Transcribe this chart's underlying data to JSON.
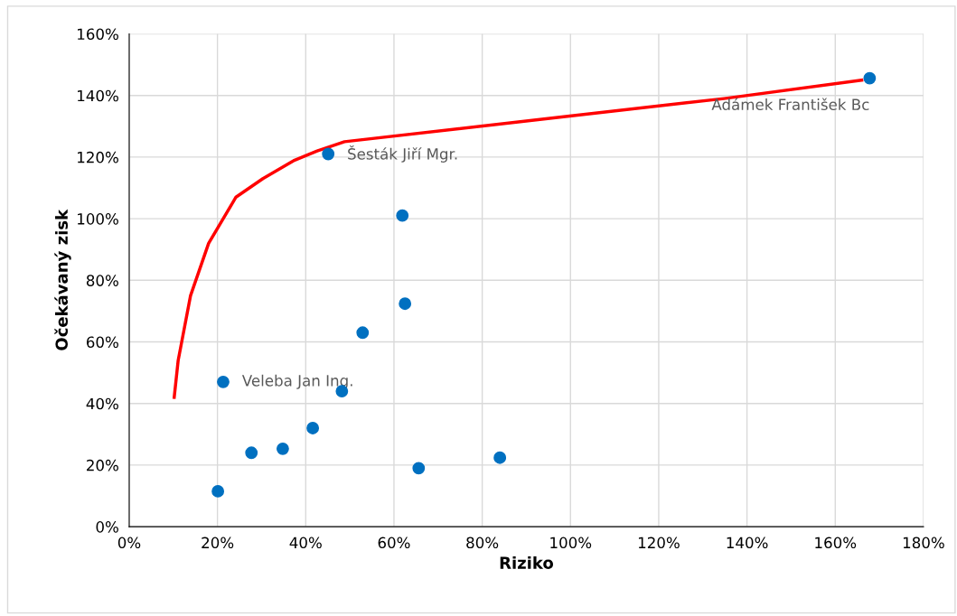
{
  "chart_data": {
    "type": "scatter",
    "xlabel": "Riziko",
    "ylabel": "Očekávaný zisk",
    "xlim": [
      0,
      180
    ],
    "xticks": [
      {
        "value": 0,
        "label": "0%"
      },
      {
        "value": 20,
        "label": "20%"
      },
      {
        "value": 40,
        "label": "40%"
      },
      {
        "value": 60,
        "label": "60%"
      },
      {
        "value": 80,
        "label": "80%"
      },
      {
        "value": 100,
        "label": "100%"
      },
      {
        "value": 120,
        "label": "120%"
      },
      {
        "value": 140,
        "label": "140%"
      },
      {
        "value": 160,
        "label": "160%"
      },
      {
        "value": 180,
        "label": "180%"
      }
    ],
    "ylim": [
      0,
      160
    ],
    "yticks": [
      {
        "value": 0,
        "label": "0%"
      },
      {
        "value": 20,
        "label": "20%"
      },
      {
        "value": 40,
        "label": "40%"
      },
      {
        "value": 60,
        "label": "60%"
      },
      {
        "value": 80,
        "label": "80%"
      },
      {
        "value": 100,
        "label": "100%"
      },
      {
        "value": 120,
        "label": "120%"
      },
      {
        "value": 140,
        "label": "140%"
      },
      {
        "value": 160,
        "label": "160%"
      }
    ],
    "grid": true,
    "legend": false,
    "series": [
      {
        "type": "line",
        "color": "#ff0000",
        "marker": "none",
        "x": [
          10.2,
          11.1,
          13.9,
          18,
          24.2,
          30.3,
          37.5,
          42.6,
          48.8,
          98,
          134.8,
          166
        ],
        "values": [
          42,
          54,
          75,
          92,
          107,
          113,
          119,
          122,
          125,
          133,
          139,
          145
        ]
      },
      {
        "color": "#0070c0",
        "marker": "circle",
        "x": [
          20.1,
          21.3,
          27.7,
          34.8,
          41.6,
          45.1,
          48.2,
          52.9,
          61.9,
          62.5,
          65.6,
          84.0,
          167.8
        ],
        "values": [
          11.5,
          47,
          24,
          25.3,
          32,
          121,
          44,
          63,
          101,
          72.4,
          19,
          22.4,
          145.6
        ]
      }
    ],
    "annotations": [
      {
        "text": "Veleba Jan Ing.",
        "x": 21.3,
        "y": 47
      },
      {
        "text": "Šesták Jiří Mgr.",
        "x": 45.1,
        "y": 121
      },
      {
        "text": "Adámek František Bc",
        "x": 167.8,
        "y": 145.6
      }
    ]
  }
}
